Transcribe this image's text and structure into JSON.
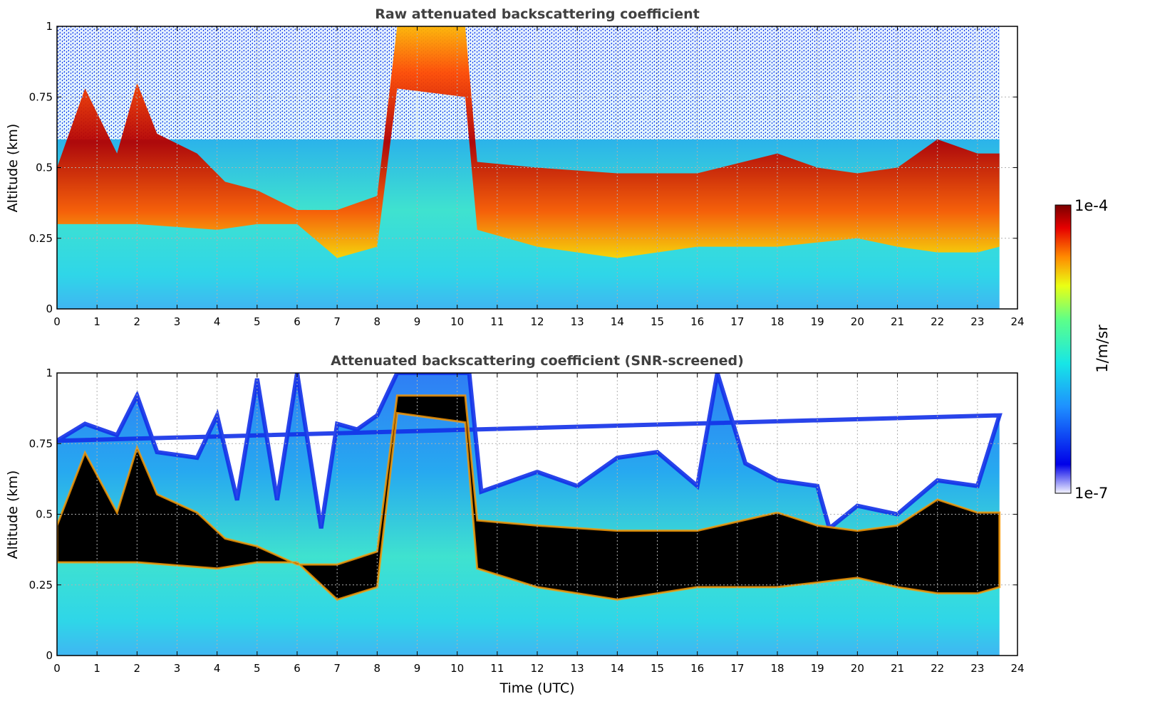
{
  "figure": {
    "colors": {
      "background": "#ffffff",
      "title": "#404040",
      "grid": "#b0b0b0"
    }
  },
  "chart_data": [
    {
      "type": "heatmap",
      "title": "Raw attenuated backscattering coefficient",
      "xlabel": "",
      "ylabel": "Altitude (km)",
      "xlim": [
        0,
        24
      ],
      "ylim": [
        0,
        1
      ],
      "x_ticks": [
        "0",
        "1",
        "2",
        "3",
        "4",
        "5",
        "6",
        "7",
        "8",
        "9",
        "10",
        "11",
        "12",
        "13",
        "14",
        "15",
        "16",
        "17",
        "18",
        "19",
        "20",
        "21",
        "22",
        "23",
        "24"
      ],
      "y_ticks": [
        "0",
        "0.25",
        "0.5",
        "0.75",
        "1"
      ],
      "data_end_hour": 23.55,
      "grid": true,
      "layer_top_km": [
        [
          0,
          0.5
        ],
        [
          0.7,
          0.78
        ],
        [
          1.5,
          0.55
        ],
        [
          2.0,
          0.8
        ],
        [
          2.5,
          0.62
        ],
        [
          3.5,
          0.55
        ],
        [
          4.2,
          0.45
        ],
        [
          5.0,
          0.42
        ],
        [
          6.0,
          0.35
        ],
        [
          7.0,
          0.35
        ],
        [
          8.0,
          0.4
        ],
        [
          8.5,
          1.0
        ],
        [
          10.2,
          1.0
        ],
        [
          10.5,
          0.52
        ],
        [
          12.0,
          0.5
        ],
        [
          14.0,
          0.48
        ],
        [
          16.0,
          0.48
        ],
        [
          18.0,
          0.55
        ],
        [
          19.0,
          0.5
        ],
        [
          20.0,
          0.48
        ],
        [
          21.0,
          0.5
        ],
        [
          22.0,
          0.6
        ],
        [
          23.0,
          0.55
        ],
        [
          23.55,
          0.55
        ]
      ],
      "layer_base_km": [
        [
          0,
          0.3
        ],
        [
          2.0,
          0.3
        ],
        [
          4.0,
          0.28
        ],
        [
          5.0,
          0.3
        ],
        [
          6.0,
          0.3
        ],
        [
          7.0,
          0.18
        ],
        [
          8.0,
          0.22
        ],
        [
          8.5,
          0.78
        ],
        [
          10.2,
          0.75
        ],
        [
          10.5,
          0.28
        ],
        [
          12.0,
          0.22
        ],
        [
          14.0,
          0.18
        ],
        [
          16.0,
          0.22
        ],
        [
          18.0,
          0.22
        ],
        [
          20.0,
          0.25
        ],
        [
          21.0,
          0.22
        ],
        [
          22.0,
          0.2
        ],
        [
          23.0,
          0.2
        ],
        [
          23.55,
          0.22
        ]
      ],
      "colorbar": {
        "min_label": "1e-7",
        "max_label": "1e-4",
        "label": "1/m/sr",
        "scale": "log"
      }
    },
    {
      "type": "heatmap",
      "title": "Attenuated backscattering coefficient (SNR-screened)",
      "xlabel": "Time (UTC)",
      "ylabel": "Altitude (km)",
      "xlim": [
        0,
        24
      ],
      "ylim": [
        0,
        1
      ],
      "x_ticks": [
        "0",
        "1",
        "2",
        "3",
        "4",
        "5",
        "6",
        "7",
        "8",
        "9",
        "10",
        "11",
        "12",
        "13",
        "14",
        "15",
        "16",
        "17",
        "18",
        "19",
        "20",
        "21",
        "22",
        "23",
        "24"
      ],
      "y_ticks": [
        "0",
        "0.25",
        "0.5",
        "0.75",
        "1"
      ],
      "data_end_hour": 23.55,
      "grid": true,
      "signal_top_km": [
        [
          0,
          0.76
        ],
        [
          0.7,
          0.82
        ],
        [
          1.5,
          0.78
        ],
        [
          2.0,
          0.92
        ],
        [
          2.5,
          0.72
        ],
        [
          3.5,
          0.7
        ],
        [
          4.0,
          0.85
        ],
        [
          4.5,
          0.55
        ],
        [
          5.0,
          0.98
        ],
        [
          5.5,
          0.55
        ],
        [
          6.0,
          1.0
        ],
        [
          6.6,
          0.45
        ],
        [
          7.0,
          0.82
        ],
        [
          7.5,
          0.8
        ],
        [
          8.0,
          0.85
        ],
        [
          8.5,
          1.0
        ],
        [
          10.3,
          1.0
        ],
        [
          10.6,
          0.58
        ],
        [
          12.0,
          0.65
        ],
        [
          13.0,
          0.6
        ],
        [
          14.0,
          0.7
        ],
        [
          15.0,
          0.72
        ],
        [
          16.0,
          0.6
        ],
        [
          16.5,
          1.0
        ],
        [
          17.2,
          0.68
        ],
        [
          18.0,
          0.62
        ],
        [
          19.0,
          0.6
        ],
        [
          19.3,
          0.45
        ],
        [
          20.0,
          0.53
        ],
        [
          21.0,
          0.5
        ],
        [
          22.0,
          0.62
        ],
        [
          23.0,
          0.6
        ],
        [
          23.55,
          0.85
        ]
      ],
      "colorbar": {
        "min_label": "1e-7",
        "max_label": "1e-4",
        "label": "1/m/sr",
        "scale": "log"
      }
    }
  ]
}
